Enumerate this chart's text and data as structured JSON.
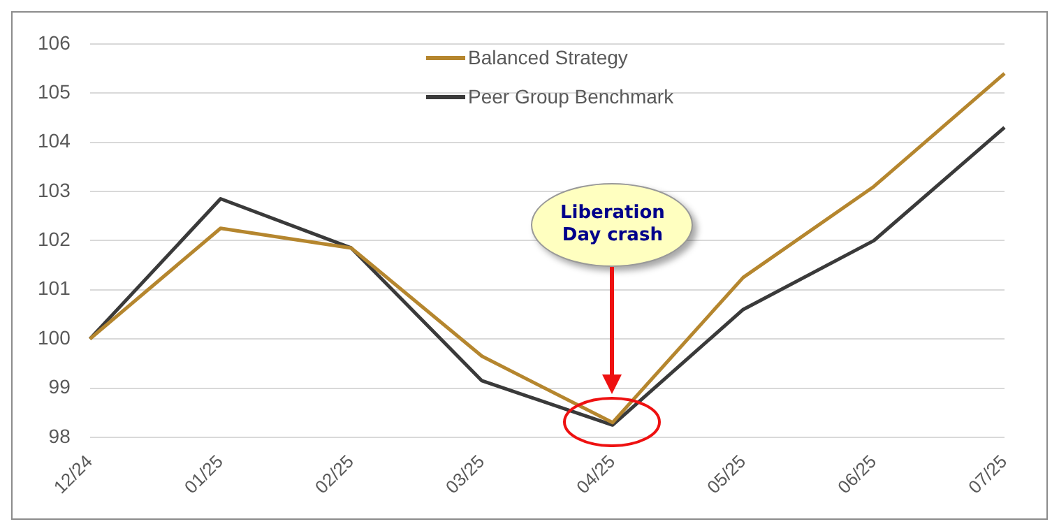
{
  "chart_data": {
    "type": "line",
    "categories": [
      "12/24",
      "01/25",
      "02/25",
      "03/25",
      "04/25",
      "05/25",
      "06/25",
      "07/25"
    ],
    "series": [
      {
        "name": "Balanced Strategy",
        "color": "#b5862e",
        "values": [
          100,
          102.25,
          101.85,
          99.65,
          98.3,
          101.25,
          103.1,
          105.4
        ]
      },
      {
        "name": "Peer Group Benchmark",
        "color": "#3a3a3a",
        "values": [
          100,
          102.85,
          101.85,
          99.15,
          98.25,
          100.6,
          102.0,
          104.3
        ]
      }
    ],
    "ylim": [
      98,
      106
    ],
    "yticks": [
      98,
      99,
      100,
      101,
      102,
      103,
      104,
      105,
      106
    ],
    "grid": "y",
    "legend": "top",
    "marker": "none",
    "line_style": "solid",
    "annotations": [
      "Liberation Day crash"
    ]
  }
}
